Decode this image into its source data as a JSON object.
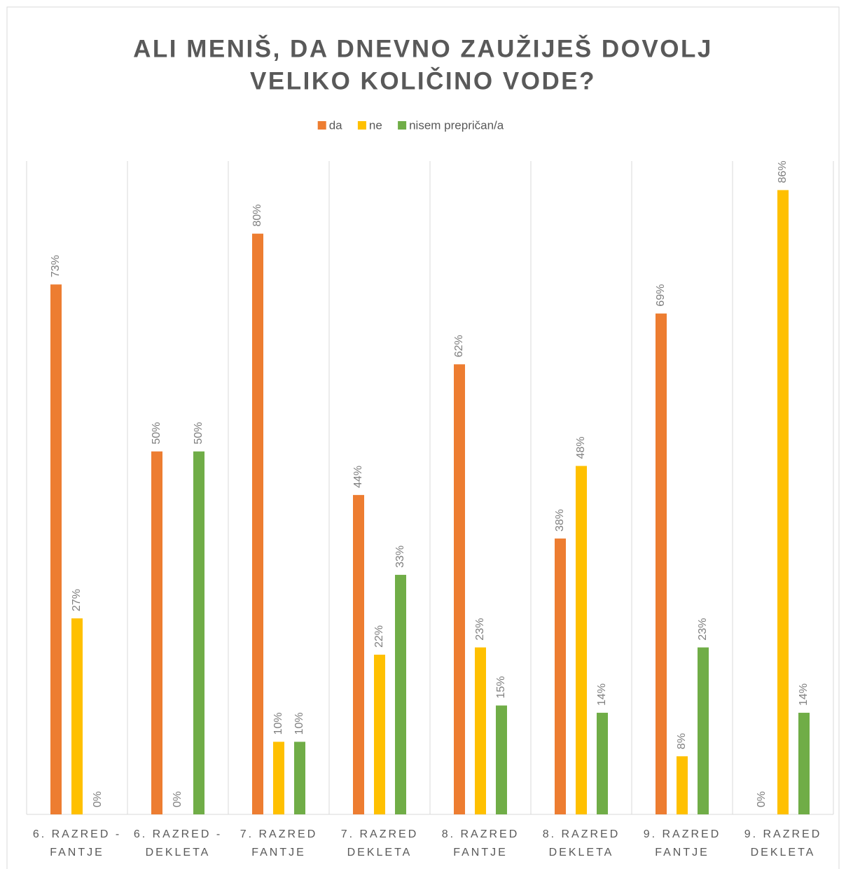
{
  "chart_data": {
    "type": "bar",
    "title": [
      "ALI MENIŠ, DA DNEVNO ZAUŽIJEŠ DOVOLJ",
      "VELIKO KOLIČINO VODE?"
    ],
    "categories": [
      [
        "6. RAZRED -",
        "FANTJE"
      ],
      [
        "6. RAZRED -",
        "DEKLETA"
      ],
      [
        "7. RAZRED",
        "FANTJE"
      ],
      [
        "7. RAZRED",
        "DEKLETA"
      ],
      [
        "8. RAZRED",
        "FANTJE"
      ],
      [
        "8. RAZRED",
        "DEKLETA"
      ],
      [
        "9. RAZRED",
        "FANTJE"
      ],
      [
        "9. RAZRED",
        "DEKLETA"
      ]
    ],
    "series": [
      {
        "name": "da",
        "color": "#ed7d31",
        "values": [
          73,
          50,
          80,
          44,
          62,
          38,
          69,
          0
        ],
        "value_labels": [
          "73%",
          "50%",
          "80%",
          "44%",
          "62%",
          "38%",
          "69%",
          "0%"
        ]
      },
      {
        "name": "ne",
        "color": "#ffc000",
        "values": [
          27,
          0,
          10,
          22,
          23,
          48,
          8,
          86
        ],
        "value_labels": [
          "27%",
          "0%",
          "10%",
          "22%",
          "23%",
          "48%",
          "8%",
          "86%"
        ]
      },
      {
        "name": "nisem prepričan/a",
        "color": "#70ad47",
        "values": [
          0,
          50,
          10,
          33,
          15,
          14,
          23,
          14
        ],
        "value_labels": [
          "0%",
          "50%",
          "10%",
          "33%",
          "15%",
          "14%",
          "23%",
          "14%"
        ]
      }
    ],
    "ylim": [
      0,
      90
    ],
    "legend": "top"
  }
}
